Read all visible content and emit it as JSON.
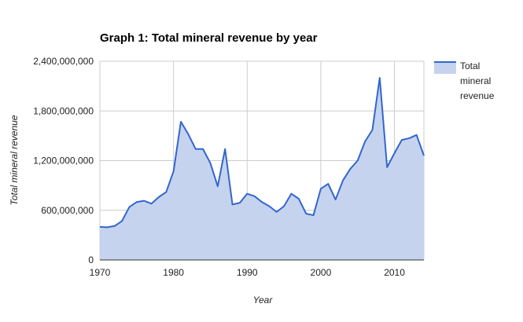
{
  "chart_data": {
    "type": "area",
    "title": "Graph 1: Total mineral revenue by year",
    "xlabel": "Year",
    "ylabel": "Total mineral revenue",
    "xlim": [
      1970,
      2014
    ],
    "ylim": [
      0,
      2400000000
    ],
    "x_ticks": [
      1970,
      1980,
      1990,
      2000,
      2010
    ],
    "y_ticks": [
      0,
      600000000,
      1200000000,
      1800000000,
      2400000000
    ],
    "x_tick_labels": [
      "1970",
      "1980",
      "1990",
      "2000",
      "2010"
    ],
    "y_tick_labels": [
      "0",
      "600,000,000",
      "1,200,000,000",
      "1,800,000,000",
      "2,400,000,000"
    ],
    "grid": true,
    "legend_position": "right",
    "series": [
      {
        "name": "Total mineral revenue",
        "color": "#3366cc",
        "fill_color": "#c5d3ef",
        "x": [
          1970,
          1971,
          1972,
          1973,
          1974,
          1975,
          1976,
          1977,
          1978,
          1979,
          1980,
          1981,
          1982,
          1983,
          1984,
          1985,
          1986,
          1987,
          1988,
          1989,
          1990,
          1991,
          1992,
          1993,
          1994,
          1995,
          1996,
          1997,
          1998,
          1999,
          2000,
          2001,
          2002,
          2003,
          2004,
          2005,
          2006,
          2007,
          2008,
          2009,
          2010,
          2011,
          2012,
          2013,
          2014
        ],
        "values": [
          400000000,
          395000000,
          410000000,
          470000000,
          640000000,
          700000000,
          715000000,
          680000000,
          760000000,
          820000000,
          1070000000,
          1670000000,
          1520000000,
          1340000000,
          1340000000,
          1170000000,
          890000000,
          1340000000,
          670000000,
          690000000,
          800000000,
          770000000,
          700000000,
          650000000,
          580000000,
          650000000,
          800000000,
          740000000,
          560000000,
          540000000,
          860000000,
          920000000,
          730000000,
          960000000,
          1100000000,
          1200000000,
          1430000000,
          1570000000,
          2200000000,
          1120000000,
          1290000000,
          1450000000,
          1470000000,
          1510000000,
          1260000000
        ]
      }
    ]
  }
}
